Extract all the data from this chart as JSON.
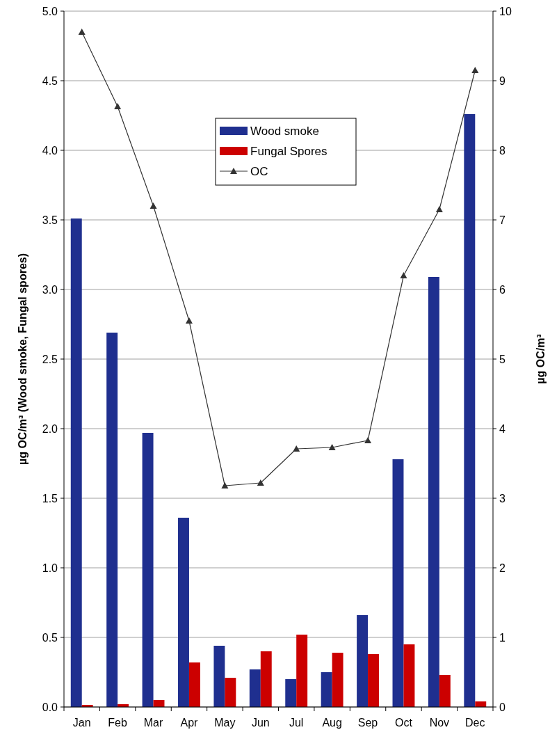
{
  "chart_data": {
    "type": "bar",
    "ylabel": "µg OC/m³ (Wood smoke, Fungal spores)",
    "y2label": "µg OC/m³",
    "categories": [
      "Jan",
      "Feb",
      "Mar",
      "Apr",
      "May",
      "Jun",
      "Jul",
      "Aug",
      "Sep",
      "Oct",
      "Nov",
      "Dec"
    ],
    "series": [
      {
        "name": "Wood smoke",
        "color": "#1f2f8f",
        "values": [
          3.51,
          2.69,
          1.97,
          1.36,
          0.44,
          0.27,
          0.2,
          0.25,
          0.66,
          1.78,
          3.09,
          4.26
        ]
      },
      {
        "name": "Fungal Spores",
        "color": "#cc0000",
        "values": [
          0.015,
          0.02,
          0.05,
          0.32,
          0.21,
          0.4,
          0.52,
          0.39,
          0.38,
          0.45,
          0.23,
          0.04
        ]
      },
      {
        "name": "OC",
        "type": "line",
        "axis": "y2",
        "color": "#333333",
        "marker": "triangle",
        "values": [
          9.7,
          8.63,
          7.2,
          5.55,
          3.18,
          3.22,
          3.71,
          3.73,
          3.83,
          6.2,
          7.15,
          9.15
        ]
      }
    ],
    "ylim": [
      0,
      5
    ],
    "yticks": [
      {
        "value": 0,
        "label": "0.0"
      },
      {
        "value": 0.5,
        "label": "0.5"
      },
      {
        "value": 1,
        "label": "1.0"
      },
      {
        "value": 1.5,
        "label": "1.5"
      },
      {
        "value": 2,
        "label": "2.0"
      },
      {
        "value": 2.5,
        "label": "2.5"
      },
      {
        "value": 3,
        "label": "3.0"
      },
      {
        "value": 3.5,
        "label": "3.5"
      },
      {
        "value": 4,
        "label": "4.0"
      },
      {
        "value": 4.5,
        "label": "4.5"
      },
      {
        "value": 5,
        "label": "5.0"
      }
    ],
    "y2lim": [
      0,
      10
    ],
    "y2ticks": [
      0,
      1,
      2,
      3,
      4,
      5,
      6,
      7,
      8,
      9,
      10
    ],
    "grid": "y",
    "legend": "top"
  }
}
